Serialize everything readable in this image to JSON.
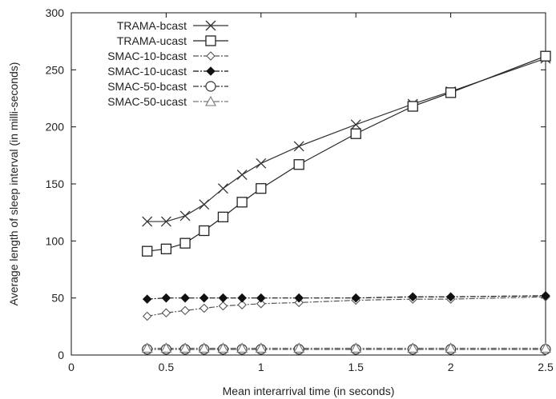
{
  "chart_data": {
    "type": "line",
    "xlabel": "Mean interarrival time (in seconds)",
    "ylabel": "Average length of sleep interval (in milli-seconds)",
    "xlim": [
      0,
      2.5
    ],
    "ylim": [
      0,
      300
    ],
    "xticks": [
      0,
      0.5,
      1,
      1.5,
      2,
      2.5
    ],
    "yticks": [
      0,
      50,
      100,
      150,
      200,
      250,
      300
    ],
    "xtick_labels": [
      "0",
      "0.5",
      "1",
      "1.5",
      "2",
      "2.5"
    ],
    "ytick_labels": [
      "0",
      "50",
      "100",
      "150",
      "200",
      "250",
      "300"
    ],
    "grid": false,
    "legend_position": "top-left",
    "series": [
      {
        "name": "TRAMA-bcast",
        "marker": "x",
        "line": "solid",
        "x": [
          0.4,
          0.5,
          0.6,
          0.7,
          0.8,
          0.9,
          1.0,
          1.2,
          1.5,
          1.8,
          2.0,
          2.5
        ],
        "y": [
          117,
          117,
          122,
          132,
          146,
          158,
          168,
          183,
          202,
          220,
          231,
          260
        ]
      },
      {
        "name": "TRAMA-ucast",
        "marker": "square",
        "line": "solid",
        "x": [
          0.4,
          0.5,
          0.6,
          0.7,
          0.8,
          0.9,
          1.0,
          1.2,
          1.5,
          1.8,
          2.0,
          2.5
        ],
        "y": [
          91,
          93,
          98,
          109,
          121,
          134,
          146,
          167,
          194,
          218,
          230,
          262
        ]
      },
      {
        "name": "SMAC-10-bcast",
        "marker": "diamond-open",
        "line": "dashdot",
        "x": [
          0.4,
          0.5,
          0.6,
          0.7,
          0.8,
          0.9,
          1.0,
          1.2,
          1.5,
          1.8,
          2.0,
          2.5
        ],
        "y": [
          34,
          37,
          39,
          41,
          43,
          44,
          45,
          46,
          48,
          49,
          49,
          51
        ]
      },
      {
        "name": "SMAC-10-ucast",
        "marker": "diamond-filled",
        "line": "dashdot",
        "x": [
          0.4,
          0.5,
          0.6,
          0.7,
          0.8,
          0.9,
          1.0,
          1.2,
          1.5,
          1.8,
          2.0,
          2.5
        ],
        "y": [
          49,
          50,
          50,
          50,
          50,
          50,
          50,
          50,
          50,
          51,
          51,
          52
        ]
      },
      {
        "name": "SMAC-50-bcast",
        "marker": "circle",
        "line": "dashdot",
        "x": [
          0.4,
          0.5,
          0.6,
          0.7,
          0.8,
          0.9,
          1.0,
          1.2,
          1.5,
          1.8,
          2.0,
          2.5
        ],
        "y": [
          5,
          5,
          5,
          5,
          5,
          5,
          5,
          5,
          5,
          5,
          5,
          5
        ]
      },
      {
        "name": "SMAC-50-ucast",
        "marker": "triangle",
        "line": "dashdot",
        "x": [
          0.4,
          0.5,
          0.6,
          0.7,
          0.8,
          0.9,
          1.0,
          1.2,
          1.5,
          1.8,
          2.0,
          2.5
        ],
        "y": [
          6,
          6,
          6,
          6,
          6,
          6,
          6,
          6,
          6,
          6,
          6,
          6
        ]
      }
    ]
  },
  "colors": {
    "axis": "#111111",
    "trama_bcast": "#333333",
    "trama_ucast": "#222222",
    "smac_10_bcast": "#555555",
    "smac_10_ucast": "#111111",
    "smac_50_bcast": "#333333",
    "smac_50_ucast": "#777777"
  }
}
